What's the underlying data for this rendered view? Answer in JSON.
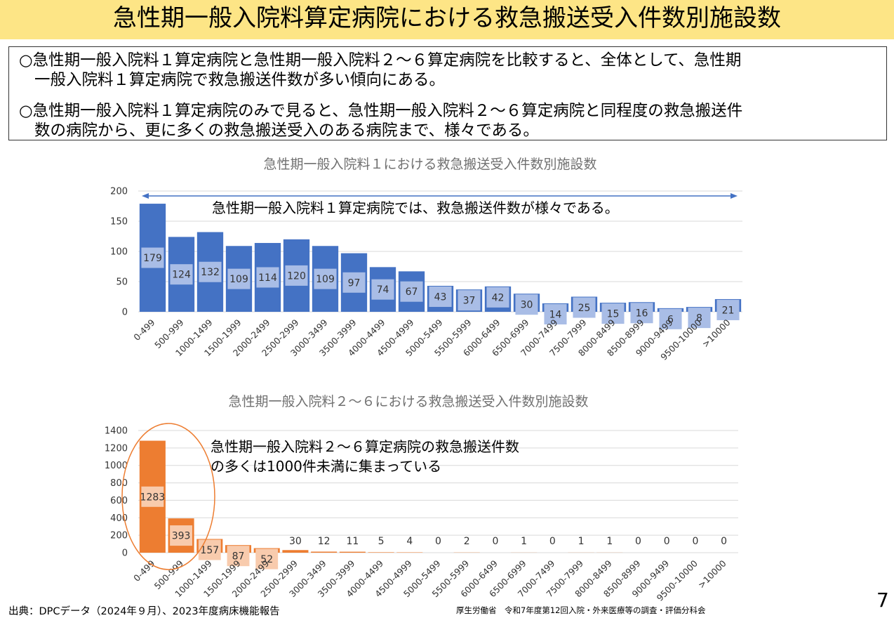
{
  "title": "急性期一般入院料算定病院における救急搬送受入件数別施設数",
  "summary": {
    "bullet1_line1": "○急性期一般入院料１算定病院と急性期一般入院料２～６算定病院を比較すると、全体として、急性期",
    "bullet1_line2": "一般入院料１算定病院で救急搬送件数が多い傾向にある。",
    "bullet2_line1": "○急性期一般入院料１算定病院のみで見ると、急性期一般入院料２～６算定病院と同程度の救急搬送件",
    "bullet2_line2": "数の病院から、更に多くの救急搬送受入のある病院まで、様々である。"
  },
  "chart_data": [
    {
      "type": "bar",
      "title": "急性期一般入院料１における救急搬送受入件数別施設数",
      "categories": [
        "0-499",
        "500-999",
        "1000-1499",
        "1500-1999",
        "2000-2499",
        "2500-2999",
        "3000-3499",
        "3500-3999",
        "4000-4499",
        "4500-4999",
        "5000-5499",
        "5500-5999",
        "6000-6499",
        "6500-6999",
        "7000-7499",
        "7500-7999",
        "8000-8499",
        "8500-8999",
        "9000-9499",
        "9500-10000",
        ">10000"
      ],
      "values": [
        179,
        124,
        132,
        109,
        114,
        120,
        109,
        97,
        74,
        67,
        43,
        37,
        42,
        30,
        14,
        25,
        15,
        16,
        6,
        8,
        21
      ],
      "ylim": [
        0,
        200
      ],
      "yticks": [
        0,
        50,
        100,
        150,
        200
      ],
      "color": "#4472c4",
      "label_box_color": "#a9bde6",
      "grid": true,
      "annotation": "急性期一般入院料１算定病院では、救急搬送件数が様々である。",
      "arrow_color": "#4472c4"
    },
    {
      "type": "bar",
      "title": "急性期一般入院料２～６における救急搬送受入件数別施設数",
      "categories": [
        "0-499",
        "500-999",
        "1000-1499",
        "1500-1999",
        "2000-2499",
        "2500-2999",
        "3000-3499",
        "3500-3999",
        "4000-4499",
        "4500-4999",
        "5000-5499",
        "5500-5999",
        "6000-6499",
        "6500-6999",
        "7000-7499",
        "7500-7999",
        "8000-8499",
        "8500-8999",
        "9000-9499",
        "9500-10000",
        ">10000"
      ],
      "values": [
        1283,
        393,
        157,
        87,
        52,
        30,
        12,
        11,
        5,
        4,
        0,
        2,
        0,
        1,
        0,
        1,
        1,
        0,
        0,
        0,
        0
      ],
      "ylim": [
        0,
        1400
      ],
      "yticks": [
        0,
        200,
        400,
        600,
        800,
        1000,
        1200,
        1400
      ],
      "color": "#ed7d31",
      "label_box_color": "#f8cbad",
      "grid": true,
      "annotation_line1": "急性期一般入院料２～６算定病院の救急搬送件数",
      "annotation_line2": "の多くは1000件未満に集まっている",
      "highlight_color": "#ed7d31"
    }
  ],
  "footer": {
    "source": "出典：DPCデータ（2024年９月）、2023年度病床機能報告",
    "org": "厚生労働省　令和7年度第12回入院・外来医療等の調査・評価分科会",
    "page": "7"
  }
}
